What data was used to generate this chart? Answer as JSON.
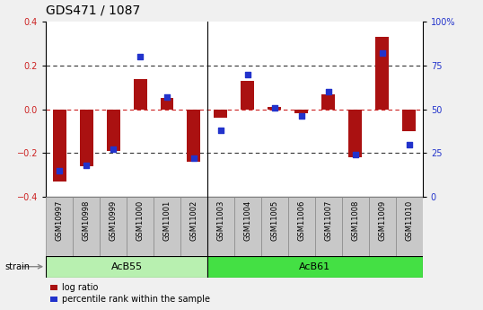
{
  "title": "GDS471 / 1087",
  "samples": [
    "GSM10997",
    "GSM10998",
    "GSM10999",
    "GSM11000",
    "GSM11001",
    "GSM11002",
    "GSM11003",
    "GSM11004",
    "GSM11005",
    "GSM11006",
    "GSM11007",
    "GSM11008",
    "GSM11009",
    "GSM11010"
  ],
  "log_ratio": [
    -0.33,
    -0.26,
    -0.19,
    0.14,
    0.05,
    -0.24,
    -0.04,
    0.13,
    0.01,
    -0.02,
    0.07,
    -0.22,
    0.33,
    -0.1
  ],
  "percentile": [
    15,
    18,
    27,
    80,
    57,
    22,
    38,
    70,
    51,
    46,
    60,
    24,
    82,
    30
  ],
  "groups": [
    {
      "name": "AcB55",
      "start": 0,
      "end": 5,
      "color": "#b8f0b0"
    },
    {
      "name": "AcB61",
      "start": 6,
      "end": 13,
      "color": "#44e044"
    }
  ],
  "acb55_count": 6,
  "acb61_count": 8,
  "ylim": [
    -0.4,
    0.4
  ],
  "yticks_left": [
    -0.4,
    -0.2,
    0.0,
    0.2,
    0.4
  ],
  "right_ytick_pcts": [
    0,
    25,
    50,
    75,
    100
  ],
  "right_ylabels": [
    "0",
    "25",
    "50",
    "75",
    "100%"
  ],
  "bar_color": "#aa1111",
  "dot_color": "#2233cc",
  "bg_color": "#f0f0f0",
  "plot_bg": "#ffffff",
  "zero_line_color": "#cc2222",
  "grid_line_color": "#333333",
  "sample_box_color": "#c8c8c8",
  "sample_box_edge": "#888888",
  "title_fontsize": 10,
  "tick_fontsize": 7,
  "sample_fontsize": 6,
  "legend_fontsize": 7,
  "strain_fontsize": 8
}
